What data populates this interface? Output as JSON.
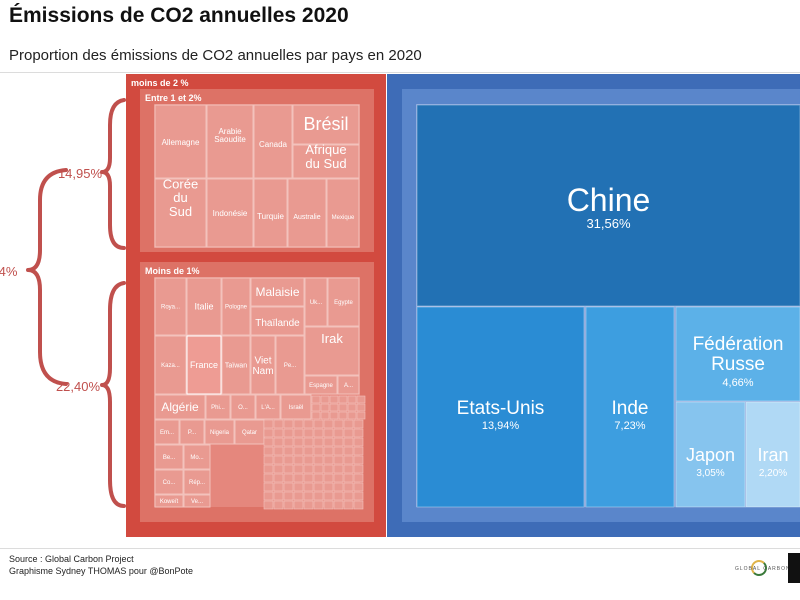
{
  "title": "Émissions de CO2 annuelles 2020",
  "subtitle": "Proportion des émissions de CO2 annuelles par pays en 2020",
  "source": "Source : Global Carbon Project",
  "credit": "Graphisme Sydney THOMAS pour @BonPote",
  "logo_text": "GLOBAL CARBON PROJECT",
  "colors": {
    "red_outer": "#d24a3f",
    "red_mid": "#dd7266",
    "red_inner": "#e5877d",
    "blue_outer": "#3e6cb7",
    "blue_mid": "#5a86cb",
    "blue_inner": "#7ea0da",
    "china": "#2271b4",
    "usa": "#2a8cd4",
    "india": "#3d9ee0",
    "russia": "#5cb1e8",
    "japan": "#86c4ee",
    "iran": "#b0d9f5",
    "brace": "#c0504d"
  },
  "chart_data": {
    "type": "treemap",
    "title": "Émissions de CO2 annuelles 2020",
    "subtitle": "Proportion des émissions de CO2 annuelles par pays en 2020",
    "unit": "%",
    "group_labels": {
      "small": "moins de 2 %",
      "between": "Entre 1 et 2%",
      "under1": "Moins de 1%"
    },
    "brace_labels": {
      "total": "4%",
      "between": "14,95%",
      "under1": "22,40%"
    },
    "large_countries": [
      {
        "name": "Chine",
        "value_label": "31,56%",
        "value": 31.56
      },
      {
        "name": "Etats-Unis",
        "value_label": "13,94%",
        "value": 13.94
      },
      {
        "name": "Inde",
        "value_label": "7,23%",
        "value": 7.23
      },
      {
        "name": "Fédération Russe",
        "value_label": "4,66%",
        "value": 4.66
      },
      {
        "name": "Japon",
        "value_label": "3,05%",
        "value": 3.05
      },
      {
        "name": "Iran",
        "value_label": "2,20%",
        "value": 2.2
      }
    ],
    "between_1_and_2": [
      "Allemagne",
      "Arabie Saoudite",
      "Canada",
      "Brésil",
      "Afrique du Sud",
      "Corée du Sud",
      "Indonésie",
      "Turquie",
      "Australie",
      "Mexique"
    ],
    "under_1": [
      "Roya...",
      "Italie",
      "Pologne",
      "Malaisie",
      "Uk...",
      "Egypte",
      "Thaïlande",
      "Irak",
      "Kaza...",
      "France",
      "Taïwan",
      "Viet Nam",
      "Pe...",
      "Espagne",
      "A...",
      "Algérie",
      "Phi...",
      "O...",
      "L'A...",
      "Israël",
      "Em...",
      "P...",
      "Nigeria",
      "Qatar",
      "Be...",
      "Mo...",
      "Co...",
      "Rép...",
      "Koweït",
      "Ve..."
    ]
  }
}
